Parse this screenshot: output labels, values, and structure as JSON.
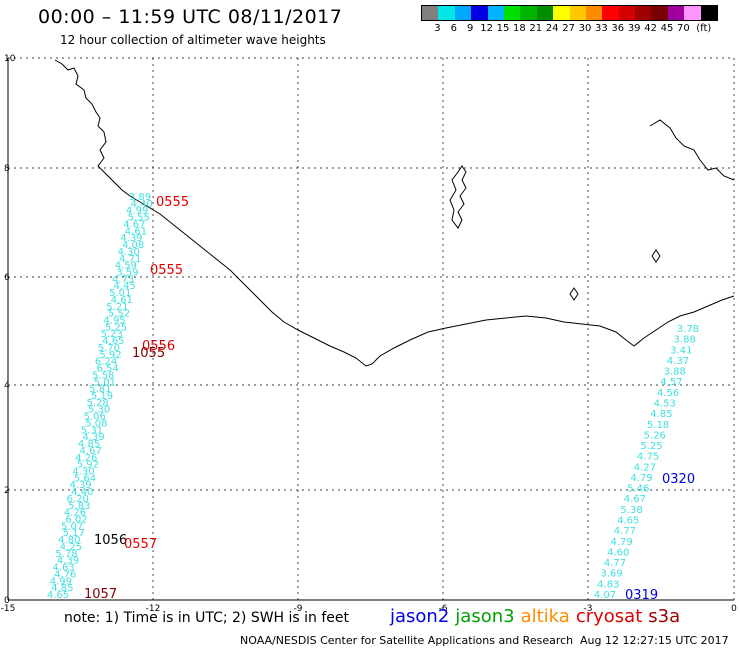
{
  "header": {
    "title": "00:00 – 11:59 UTC 08/11/2017",
    "subtitle": "12 hour collection of altimeter wave heights"
  },
  "legend": {
    "colors": [
      "#808080",
      "#00e5e5",
      "#00a8ff",
      "#0000e0",
      "#00b4ff",
      "#00e000",
      "#00b400",
      "#008c00",
      "#ffff00",
      "#ffc800",
      "#ff8c00",
      "#ff0000",
      "#d20000",
      "#a00000",
      "#780000",
      "#a000a0",
      "#ff96ff",
      "#000000"
    ],
    "labels": [
      "3",
      "6",
      "9",
      "12",
      "15",
      "18",
      "21",
      "24",
      "27",
      "30",
      "33",
      "36",
      "39",
      "42",
      "45",
      "70",
      "(ft)"
    ]
  },
  "map": {
    "x_ticks": [
      "-15",
      "-12",
      "-9",
      "-6",
      "-3",
      "0"
    ],
    "y_ticks": [
      "0",
      "2",
      "4",
      "6",
      "8",
      "10"
    ],
    "west_track": {
      "color": "#40e0e0",
      "values": [
        "3.89",
        "4.40",
        "4.99",
        "5.55",
        "4.67",
        "4.61",
        "4.39",
        "4.08",
        "4.30",
        "4.71",
        "4.59",
        "3.59",
        "4.73",
        "4.45",
        "5.01",
        "4.61",
        "5.21",
        "5.52",
        "4.95",
        "5.25",
        "5.23",
        "4.65",
        "5.70",
        "5.92",
        "6.24",
        "6.54",
        "5.58",
        "5.01",
        "5.81",
        "5.19",
        "5.28",
        "5.30",
        "5.06",
        "5.08",
        "5.31",
        "4.39",
        "4.85",
        "4.67",
        "4.26",
        "5.92",
        "4.30",
        "5.64",
        "4.39",
        "4.40",
        "6.20",
        "5.83",
        "4.26",
        "6.02",
        "5.07",
        "5.17",
        "4.80",
        "4.25",
        "5.78",
        "4.39",
        "4.63",
        "4.76",
        "4.99",
        "4.85",
        "4.65"
      ]
    },
    "east_track": {
      "color": "#40e0e0",
      "values": [
        "3.78",
        "3.88",
        "3.41",
        "4.37",
        "3.88",
        "4.57",
        "4.56",
        "4.53",
        "4.85",
        "5.18",
        "5.26",
        "5.25",
        "4.75",
        "4.27",
        "4.79",
        "5.46",
        "4.67",
        "5.38",
        "4.65",
        "4.77",
        "4.79",
        "4.60",
        "4.77",
        "3.69",
        "4.83",
        "4.07"
      ]
    },
    "time_labels": [
      {
        "text": "0555",
        "color": "#e00000"
      },
      {
        "text": "0555",
        "color": "#e00000"
      },
      {
        "text": "0556",
        "color": "#e00000"
      },
      {
        "text": "1055",
        "color": "#800000"
      },
      {
        "text": "1056",
        "color": "#000000"
      },
      {
        "text": "0557",
        "color": "#e00000"
      },
      {
        "text": "1057",
        "color": "#800000"
      },
      {
        "text": "0320",
        "color": "#0000e0"
      },
      {
        "text": "0319",
        "color": "#0000e0"
      }
    ]
  },
  "footer": {
    "note": "note:  1) Time is in UTC;  2) SWH is in feet",
    "satellites": [
      {
        "name": "jason2",
        "color": "#0000e0"
      },
      {
        "name": "jason3",
        "color": "#00a000"
      },
      {
        "name": "altika",
        "color": "#ff8c00"
      },
      {
        "name": "cryosat",
        "color": "#e00000"
      },
      {
        "name": "s3a",
        "color": "#a00000"
      }
    ],
    "credit": "NOAA/NESDIS Center for Satellite Applications and Research",
    "timestamp": "Aug 12 12:27:15 UTC 2017"
  }
}
